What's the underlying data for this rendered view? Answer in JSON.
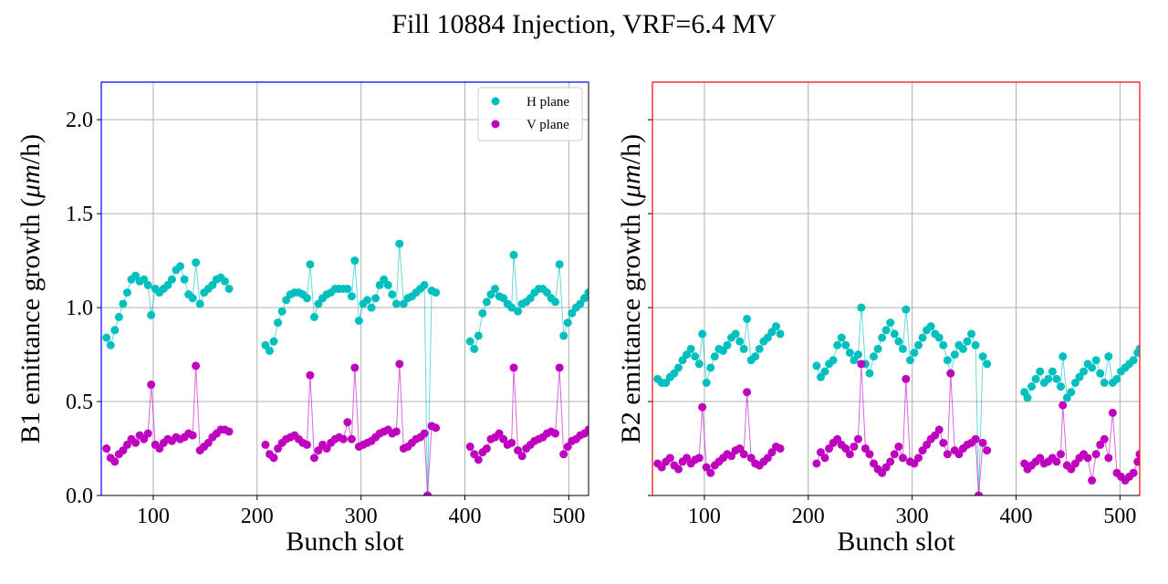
{
  "title": "Fill 10884 Injection, VRF=6.4 MV",
  "chart_data": [
    {
      "type": "scatter",
      "panel": "B1",
      "frame_color": "#0000ff",
      "xlabel": "Bunch slot",
      "ylabel": "B1 emittance growth (",
      "ylabel_unit": "μm",
      "ylabel_tail": "/h)",
      "xlim": [
        50,
        519
      ],
      "ylim": [
        0,
        2.2
      ],
      "xticks": [
        100,
        200,
        300,
        400,
        500
      ],
      "xtick_labels": [
        "100",
        "200",
        "300",
        "400",
        "500"
      ],
      "yticks": [
        0,
        0.5,
        1.0,
        1.5,
        2.0
      ],
      "ytick_labels": [
        "0.0",
        "0.5",
        "1.0",
        "1.5",
        "2.0"
      ],
      "grid": true,
      "legend": {
        "placement": "top-right",
        "entries": [
          "H plane",
          "V plane"
        ]
      },
      "x": [
        55,
        59,
        63,
        67,
        71,
        75,
        79,
        83,
        87,
        91,
        95,
        98,
        102,
        106,
        110,
        114,
        118,
        122,
        126,
        130,
        134,
        138,
        141,
        145,
        149,
        153,
        157,
        161,
        165,
        169,
        173,
        208,
        212,
        216,
        220,
        224,
        228,
        232,
        236,
        240,
        244,
        248,
        251,
        255,
        259,
        263,
        267,
        271,
        275,
        279,
        283,
        287,
        291,
        294,
        298,
        302,
        306,
        310,
        314,
        318,
        322,
        326,
        330,
        334,
        337,
        341,
        345,
        349,
        353,
        357,
        361,
        364,
        368,
        372,
        405,
        409,
        413,
        417,
        421,
        425,
        429,
        433,
        437,
        441,
        445,
        447,
        451,
        455,
        459,
        463,
        467,
        471,
        475,
        479,
        483,
        487,
        491,
        495,
        499,
        503,
        507,
        511,
        515,
        519
      ],
      "series": [
        {
          "name": "H plane",
          "color": "#00bfbf",
          "values": [
            0.84,
            0.8,
            0.88,
            0.95,
            1.02,
            1.08,
            1.15,
            1.17,
            1.14,
            1.15,
            1.12,
            0.96,
            1.1,
            1.08,
            1.1,
            1.12,
            1.15,
            1.2,
            1.22,
            1.15,
            1.07,
            1.05,
            1.24,
            1.02,
            1.08,
            1.1,
            1.12,
            1.15,
            1.16,
            1.14,
            1.1,
            0.8,
            0.77,
            0.82,
            0.92,
            0.98,
            1.04,
            1.07,
            1.08,
            1.08,
            1.07,
            1.05,
            1.23,
            0.95,
            1.02,
            1.05,
            1.07,
            1.08,
            1.1,
            1.1,
            1.1,
            1.1,
            1.06,
            1.25,
            0.93,
            1.02,
            1.04,
            1.0,
            1.05,
            1.12,
            1.15,
            1.12,
            1.07,
            1.02,
            1.34,
            1.02,
            1.05,
            1.06,
            1.08,
            1.1,
            1.12,
            0.0,
            1.09,
            1.08,
            0.82,
            0.78,
            0.85,
            0.97,
            1.03,
            1.07,
            1.1,
            1.06,
            1.05,
            1.02,
            1.0,
            1.28,
            0.98,
            1.02,
            1.03,
            1.05,
            1.08,
            1.1,
            1.1,
            1.08,
            1.05,
            1.03,
            1.23,
            0.85,
            0.92,
            0.97,
            1.0,
            1.02,
            1.05,
            1.08
          ]
        },
        {
          "name": "V plane",
          "color": "#bf00bf",
          "values": [
            0.25,
            0.2,
            0.18,
            0.22,
            0.24,
            0.27,
            0.3,
            0.28,
            0.32,
            0.3,
            0.33,
            0.59,
            0.27,
            0.25,
            0.28,
            0.3,
            0.29,
            0.31,
            0.3,
            0.31,
            0.33,
            0.32,
            0.69,
            0.24,
            0.26,
            0.28,
            0.31,
            0.33,
            0.35,
            0.35,
            0.34,
            0.27,
            0.22,
            0.2,
            0.25,
            0.28,
            0.3,
            0.31,
            0.32,
            0.3,
            0.28,
            0.27,
            0.64,
            0.2,
            0.24,
            0.27,
            0.25,
            0.28,
            0.3,
            0.31,
            0.3,
            0.39,
            0.3,
            0.68,
            0.26,
            0.27,
            0.28,
            0.29,
            0.31,
            0.33,
            0.34,
            0.35,
            0.33,
            0.34,
            0.7,
            0.25,
            0.26,
            0.28,
            0.3,
            0.31,
            0.33,
            0.0,
            0.37,
            0.36,
            0.26,
            0.22,
            0.19,
            0.23,
            0.25,
            0.3,
            0.31,
            0.33,
            0.3,
            0.27,
            0.28,
            0.68,
            0.24,
            0.21,
            0.25,
            0.27,
            0.29,
            0.3,
            0.31,
            0.33,
            0.34,
            0.33,
            0.68,
            0.22,
            0.26,
            0.29,
            0.3,
            0.32,
            0.33,
            0.35
          ]
        }
      ]
    },
    {
      "type": "scatter",
      "panel": "B2",
      "frame_color": "#ff0000",
      "xlabel": "Bunch slot",
      "ylabel": "B2 emittance growth (",
      "ylabel_unit": "μm",
      "ylabel_tail": "/h)",
      "xlim": [
        50,
        519
      ],
      "ylim": [
        0,
        2.2
      ],
      "xticks": [
        100,
        200,
        300,
        400,
        500
      ],
      "xtick_labels": [
        "100",
        "200",
        "300",
        "400",
        "500"
      ],
      "yticks": [
        0,
        0.5,
        1.0,
        1.5,
        2.0
      ],
      "ytick_labels": [],
      "grid": true,
      "x": [
        55,
        59,
        63,
        67,
        71,
        75,
        79,
        83,
        87,
        91,
        95,
        98,
        102,
        106,
        110,
        114,
        118,
        122,
        126,
        130,
        134,
        138,
        141,
        145,
        149,
        153,
        157,
        161,
        165,
        169,
        173,
        208,
        212,
        216,
        220,
        224,
        228,
        232,
        236,
        240,
        244,
        248,
        251,
        255,
        259,
        263,
        267,
        271,
        275,
        279,
        283,
        287,
        291,
        294,
        298,
        302,
        306,
        310,
        314,
        318,
        322,
        326,
        330,
        334,
        337,
        341,
        345,
        349,
        353,
        357,
        361,
        364,
        368,
        372,
        408,
        411,
        415,
        419,
        423,
        427,
        431,
        435,
        439,
        443,
        445,
        449,
        453,
        457,
        461,
        465,
        469,
        473,
        477,
        481,
        485,
        489,
        493,
        497,
        501,
        505,
        509,
        513,
        517,
        519
      ],
      "series": [
        {
          "name": "H plane",
          "color": "#00bfbf",
          "values": [
            0.62,
            0.6,
            0.6,
            0.63,
            0.65,
            0.68,
            0.72,
            0.75,
            0.78,
            0.74,
            0.7,
            0.86,
            0.6,
            0.68,
            0.74,
            0.78,
            0.77,
            0.8,
            0.84,
            0.86,
            0.82,
            0.78,
            0.94,
            0.72,
            0.74,
            0.78,
            0.82,
            0.84,
            0.87,
            0.9,
            0.86,
            0.69,
            0.63,
            0.66,
            0.7,
            0.72,
            0.8,
            0.84,
            0.8,
            0.76,
            0.72,
            0.75,
            1.0,
            0.7,
            0.65,
            0.74,
            0.78,
            0.84,
            0.88,
            0.92,
            0.86,
            0.82,
            0.78,
            0.99,
            0.72,
            0.76,
            0.8,
            0.84,
            0.88,
            0.9,
            0.86,
            0.84,
            0.8,
            0.72,
            0.65,
            0.75,
            0.8,
            0.78,
            0.82,
            0.86,
            0.8,
            0.0,
            0.74,
            0.7,
            0.55,
            0.52,
            0.58,
            0.62,
            0.66,
            0.6,
            0.62,
            0.66,
            0.62,
            0.58,
            0.74,
            0.52,
            0.55,
            0.6,
            0.63,
            0.66,
            0.7,
            0.68,
            0.72,
            0.65,
            0.6,
            0.74,
            0.6,
            0.62,
            0.66,
            0.68,
            0.7,
            0.72,
            0.76,
            0.78
          ]
        },
        {
          "name": "V plane",
          "color": "#bf00bf",
          "values": [
            0.17,
            0.15,
            0.18,
            0.2,
            0.16,
            0.14,
            0.18,
            0.2,
            0.17,
            0.19,
            0.2,
            0.47,
            0.15,
            0.12,
            0.16,
            0.18,
            0.2,
            0.22,
            0.21,
            0.24,
            0.25,
            0.22,
            0.55,
            0.2,
            0.17,
            0.16,
            0.18,
            0.2,
            0.23,
            0.26,
            0.25,
            0.17,
            0.23,
            0.2,
            0.25,
            0.28,
            0.3,
            0.27,
            0.25,
            0.22,
            0.26,
            0.3,
            0.7,
            0.25,
            0.22,
            0.17,
            0.14,
            0.12,
            0.15,
            0.18,
            0.22,
            0.26,
            0.2,
            0.62,
            0.18,
            0.17,
            0.2,
            0.24,
            0.27,
            0.3,
            0.32,
            0.35,
            0.28,
            0.22,
            0.65,
            0.24,
            0.22,
            0.25,
            0.27,
            0.28,
            0.3,
            0.0,
            0.28,
            0.24,
            0.17,
            0.14,
            0.16,
            0.18,
            0.2,
            0.17,
            0.18,
            0.2,
            0.18,
            0.22,
            0.48,
            0.16,
            0.14,
            0.17,
            0.2,
            0.22,
            0.2,
            0.08,
            0.22,
            0.27,
            0.3,
            0.2,
            0.44,
            0.12,
            0.1,
            0.08,
            0.1,
            0.12,
            0.18,
            0.22
          ]
        }
      ]
    }
  ]
}
